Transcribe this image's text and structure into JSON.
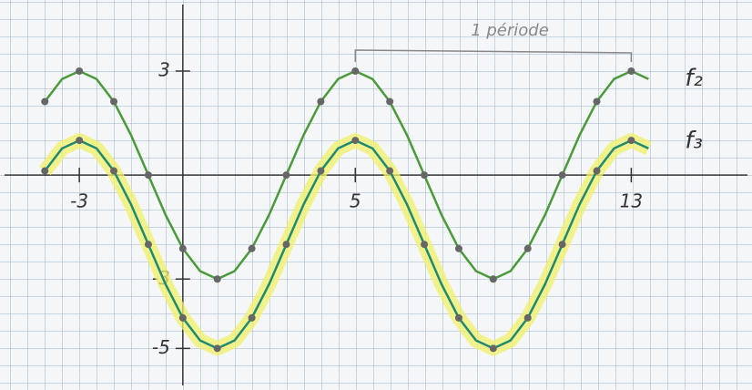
{
  "chart_data": {
    "type": "line",
    "annotation": "1 période",
    "x": [
      -4,
      -3.5,
      -3,
      -2.5,
      -2,
      -1.5,
      -1,
      -0.5,
      0,
      0.5,
      1,
      1.5,
      2,
      2.5,
      3,
      3.5,
      4,
      4.5,
      5,
      5.5,
      6,
      6.5,
      7,
      7.5,
      8,
      8.5,
      9,
      9.5,
      10,
      10.5,
      11,
      11.5,
      12,
      12.5,
      13,
      13.5
    ],
    "series": [
      {
        "name": "f₂",
        "color": "#4a9a3a",
        "values": [
          2.12,
          2.77,
          3,
          2.77,
          2.12,
          1.15,
          0,
          -1.15,
          -2.12,
          -2.77,
          -3,
          -2.77,
          -2.12,
          -1.15,
          0,
          1.15,
          2.12,
          2.77,
          3,
          2.77,
          2.12,
          1.15,
          0,
          -1.15,
          -2.12,
          -2.77,
          -3,
          -2.77,
          -2.12,
          -1.15,
          0,
          1.15,
          2.12,
          2.77,
          3,
          2.77
        ]
      },
      {
        "name": "f₃",
        "color": "#1f8a70",
        "values": [
          0.12,
          0.77,
          1,
          0.77,
          0.12,
          -0.85,
          -2,
          -3.15,
          -4.12,
          -4.77,
          -5,
          -4.77,
          -4.12,
          -3.15,
          -2,
          -0.85,
          0.12,
          0.77,
          1,
          0.77,
          0.12,
          -0.85,
          -2,
          -3.15,
          -4.12,
          -4.77,
          -5,
          -4.77,
          -4.12,
          -3.15,
          -2,
          -0.85,
          0.12,
          0.77,
          1,
          0.77
        ]
      }
    ],
    "xlim": [
      -5.3,
      16.5
    ],
    "ylim": [
      -6.2,
      5.05
    ],
    "xticks": [
      -3,
      5,
      13
    ],
    "yticks": [
      3,
      -3,
      -5
    ]
  }
}
